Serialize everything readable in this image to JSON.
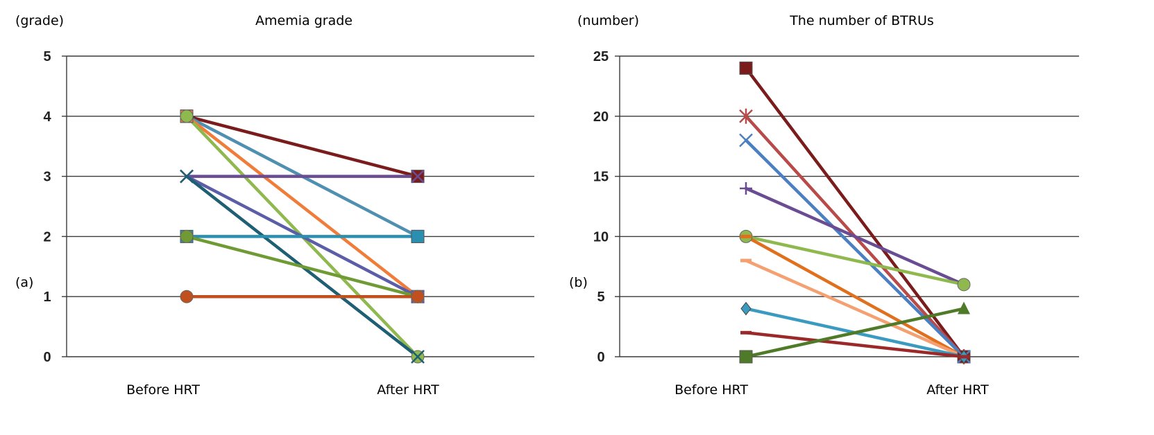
{
  "chart_data": [
    {
      "type": "line",
      "panel_label": "(a)",
      "title": "Amemia grade",
      "ylabel": "(grade)",
      "xlabel": "",
      "categories": [
        "Before HRT",
        "After HRT"
      ],
      "ylim": [
        0,
        5
      ],
      "yticks": [
        "0",
        "1",
        "2",
        "3",
        "4",
        "5"
      ],
      "grid": true,
      "legend": "none",
      "series": [
        {
          "values": [
            4,
            3
          ],
          "color": "#7b1c1c",
          "marker": "square"
        },
        {
          "values": [
            4,
            2
          ],
          "color": "#4f8fb0",
          "marker": "square"
        },
        {
          "values": [
            4,
            1
          ],
          "color": "#f07c3a",
          "marker": "square"
        },
        {
          "values": [
            4,
            0
          ],
          "color": "#8fb84f",
          "marker": "circle"
        },
        {
          "values": [
            3,
            3
          ],
          "color": "#6a4c93",
          "marker": "x"
        },
        {
          "values": [
            3,
            1
          ],
          "color": "#5b5ea6",
          "marker": "x"
        },
        {
          "values": [
            3,
            0
          ],
          "color": "#1f5f73",
          "marker": "x"
        },
        {
          "values": [
            2,
            2
          ],
          "color": "#2a8fb0",
          "marker": "square"
        },
        {
          "values": [
            2,
            1
          ],
          "color": "#6f9a34",
          "marker": "circle"
        },
        {
          "values": [
            1,
            1
          ],
          "color": "#c0501e",
          "marker": "circle"
        }
      ]
    },
    {
      "type": "line",
      "panel_label": "(b)",
      "title": "The number of BTRUs",
      "ylabel": "(number)",
      "xlabel": "",
      "categories": [
        "Before HRT",
        "After HRT"
      ],
      "ylim": [
        0,
        25
      ],
      "yticks": [
        "0",
        "5",
        "10",
        "15",
        "20",
        "25"
      ],
      "grid": true,
      "legend": "none",
      "series": [
        {
          "values": [
            24,
            0
          ],
          "color": "#7b1c1c",
          "marker": "square"
        },
        {
          "values": [
            20,
            0
          ],
          "color": "#b84a4a",
          "marker": "star"
        },
        {
          "values": [
            18,
            0
          ],
          "color": "#4a7fc1",
          "marker": "x"
        },
        {
          "values": [
            14,
            6
          ],
          "color": "#6a4c93",
          "marker": "plus"
        },
        {
          "values": [
            10,
            6
          ],
          "color": "#8fb84f",
          "marker": "circle"
        },
        {
          "values": [
            10,
            0
          ],
          "color": "#e0701e",
          "marker": "dash"
        },
        {
          "values": [
            8,
            0
          ],
          "color": "#f4a070",
          "marker": "dash"
        },
        {
          "values": [
            4,
            0
          ],
          "color": "#3a9ac0",
          "marker": "diamond"
        },
        {
          "values": [
            2,
            0
          ],
          "color": "#9a2a2a",
          "marker": "dash"
        },
        {
          "values": [
            0,
            4
          ],
          "color": "#4f7a28",
          "marker": "square-triangle"
        }
      ]
    }
  ]
}
